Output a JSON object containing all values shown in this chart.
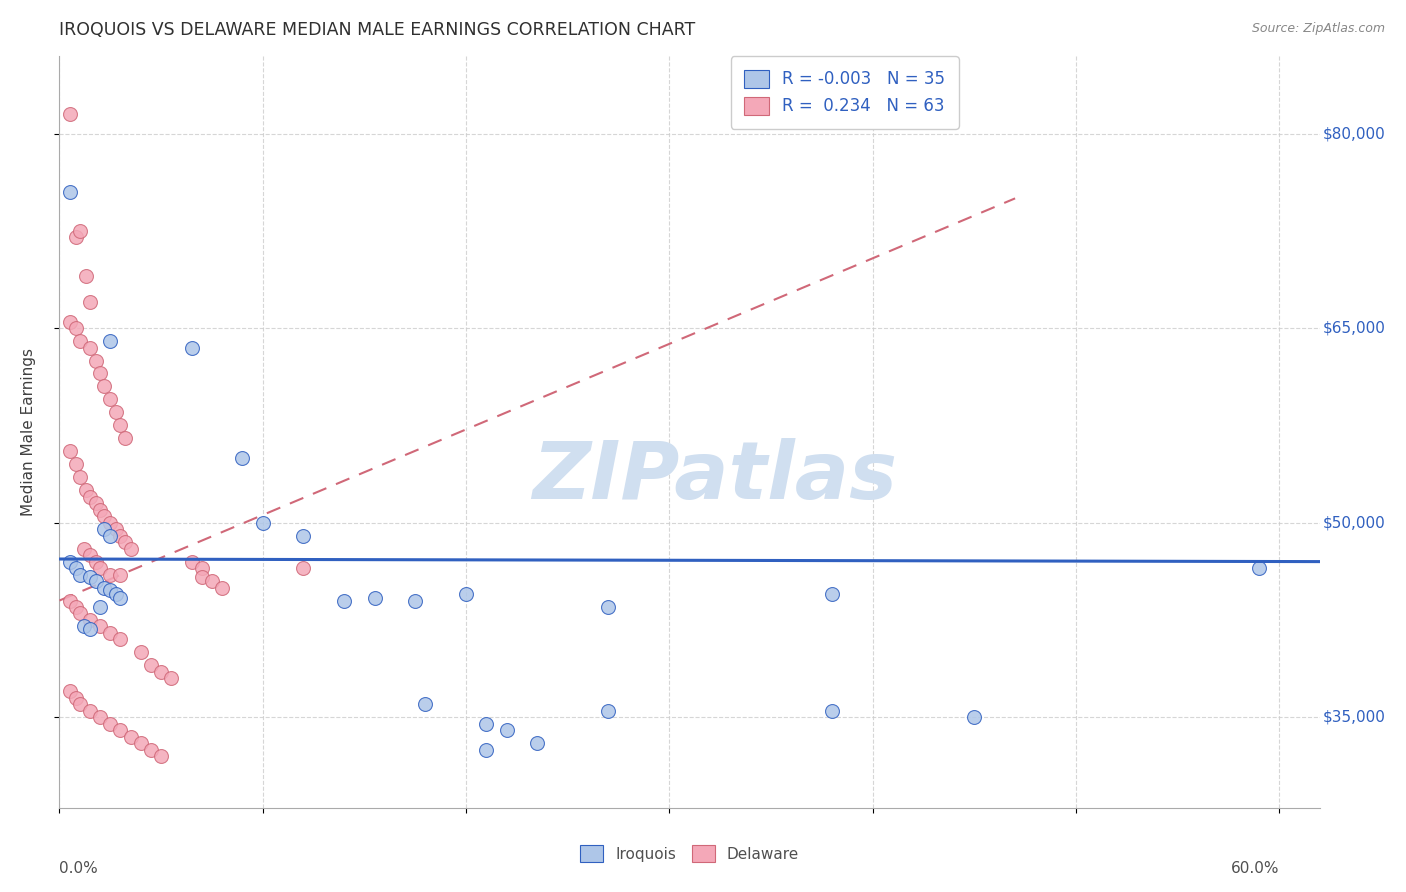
{
  "title": "IROQUOIS VS DELAWARE MEDIAN MALE EARNINGS CORRELATION CHART",
  "source": "Source: ZipAtlas.com",
  "ylabel": "Median Male Earnings",
  "yticks": [
    35000,
    50000,
    65000,
    80000
  ],
  "ytick_labels": [
    "$35,000",
    "$50,000",
    "$65,000",
    "$80,000"
  ],
  "xlim": [
    0.0,
    0.62
  ],
  "ylim": [
    28000,
    86000
  ],
  "legend_r_iroquois": "-0.003",
  "legend_n_iroquois": "35",
  "legend_r_delaware": "0.234",
  "legend_n_delaware": "63",
  "iroquois_color": "#aec6e8",
  "delaware_color": "#f4a8b8",
  "trendline_iroquois_color": "#3060c0",
  "trendline_delaware_color": "#d06878",
  "watermark_color": "#d0dff0",
  "title_color": "#303030",
  "axis_label_color": "#3060c0",
  "iroquois_scatter": [
    [
      0.005,
      75500
    ],
    [
      0.025,
      64000
    ],
    [
      0.065,
      63500
    ],
    [
      0.09,
      55000
    ],
    [
      0.1,
      50000
    ],
    [
      0.12,
      49000
    ],
    [
      0.005,
      47000
    ],
    [
      0.008,
      46500
    ],
    [
      0.01,
      46000
    ],
    [
      0.015,
      45800
    ],
    [
      0.018,
      45500
    ],
    [
      0.022,
      45000
    ],
    [
      0.025,
      44800
    ],
    [
      0.028,
      44500
    ],
    [
      0.03,
      44200
    ],
    [
      0.02,
      43500
    ],
    [
      0.022,
      49500
    ],
    [
      0.025,
      49000
    ],
    [
      0.012,
      42000
    ],
    [
      0.015,
      41800
    ],
    [
      0.14,
      44000
    ],
    [
      0.155,
      44200
    ],
    [
      0.175,
      44000
    ],
    [
      0.2,
      44500
    ],
    [
      0.27,
      43500
    ],
    [
      0.38,
      44500
    ],
    [
      0.18,
      36000
    ],
    [
      0.21,
      34500
    ],
    [
      0.22,
      34000
    ],
    [
      0.27,
      35500
    ],
    [
      0.38,
      35500
    ],
    [
      0.45,
      35000
    ],
    [
      0.59,
      46500
    ],
    [
      0.21,
      32500
    ],
    [
      0.235,
      33000
    ]
  ],
  "delaware_scatter": [
    [
      0.005,
      81500
    ],
    [
      0.008,
      72000
    ],
    [
      0.01,
      72500
    ],
    [
      0.013,
      69000
    ],
    [
      0.015,
      67000
    ],
    [
      0.005,
      65500
    ],
    [
      0.008,
      65000
    ],
    [
      0.01,
      64000
    ],
    [
      0.015,
      63500
    ],
    [
      0.018,
      62500
    ],
    [
      0.02,
      61500
    ],
    [
      0.022,
      60500
    ],
    [
      0.025,
      59500
    ],
    [
      0.028,
      58500
    ],
    [
      0.03,
      57500
    ],
    [
      0.032,
      56500
    ],
    [
      0.005,
      55500
    ],
    [
      0.008,
      54500
    ],
    [
      0.01,
      53500
    ],
    [
      0.013,
      52500
    ],
    [
      0.015,
      52000
    ],
    [
      0.018,
      51500
    ],
    [
      0.02,
      51000
    ],
    [
      0.022,
      50500
    ],
    [
      0.025,
      50000
    ],
    [
      0.028,
      49500
    ],
    [
      0.03,
      49000
    ],
    [
      0.032,
      48500
    ],
    [
      0.035,
      48000
    ],
    [
      0.012,
      48000
    ],
    [
      0.015,
      47500
    ],
    [
      0.018,
      47000
    ],
    [
      0.02,
      46500
    ],
    [
      0.025,
      46000
    ],
    [
      0.03,
      46000
    ],
    [
      0.065,
      47000
    ],
    [
      0.07,
      46500
    ],
    [
      0.07,
      45800
    ],
    [
      0.075,
      45500
    ],
    [
      0.08,
      45000
    ],
    [
      0.12,
      46500
    ],
    [
      0.005,
      44000
    ],
    [
      0.008,
      43500
    ],
    [
      0.01,
      43000
    ],
    [
      0.015,
      42500
    ],
    [
      0.02,
      42000
    ],
    [
      0.025,
      41500
    ],
    [
      0.03,
      41000
    ],
    [
      0.04,
      40000
    ],
    [
      0.045,
      39000
    ],
    [
      0.05,
      38500
    ],
    [
      0.055,
      38000
    ],
    [
      0.005,
      37000
    ],
    [
      0.008,
      36500
    ],
    [
      0.01,
      36000
    ],
    [
      0.015,
      35500
    ],
    [
      0.02,
      35000
    ],
    [
      0.025,
      34500
    ],
    [
      0.03,
      34000
    ],
    [
      0.035,
      33500
    ],
    [
      0.04,
      33000
    ],
    [
      0.045,
      32500
    ],
    [
      0.05,
      32000
    ]
  ],
  "iroquois_trend_x": [
    0.0,
    0.62
  ],
  "iroquois_trend_y": [
    47200,
    47000
  ],
  "delaware_trend_x": [
    0.0,
    0.47
  ],
  "delaware_trend_y": [
    44000,
    75000
  ]
}
